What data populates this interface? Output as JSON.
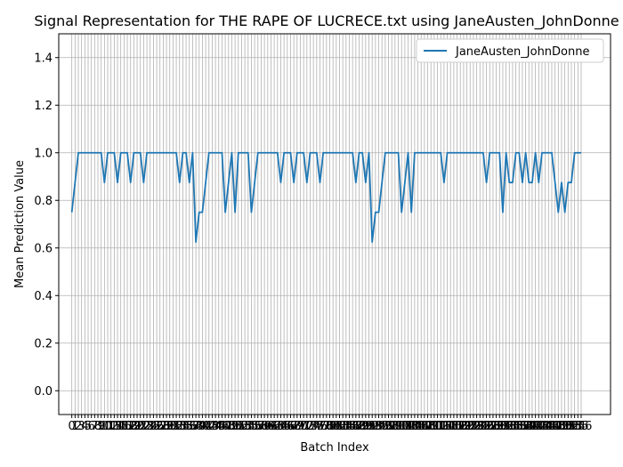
{
  "chart_data": {
    "type": "line",
    "title": "Signal Representation for THE RAPE OF LUCRECE.txt using JaneAusten_JohnDonne",
    "xlabel": "Batch Index",
    "ylabel": "Mean Prediction Value",
    "xlim": [
      -4,
      165
    ],
    "ylim": [
      -0.1,
      1.5
    ],
    "yticks": [
      0.0,
      0.2,
      0.4,
      0.6,
      0.8,
      1.0,
      1.2,
      1.4
    ],
    "grid": true,
    "legend_position": "top-right",
    "series": [
      {
        "name": "JaneAusten_JohnDonne",
        "color": "#1f77b4",
        "x_start": 0,
        "values": [
          0.75,
          0.875,
          1.0,
          1.0,
          1.0,
          1.0,
          1.0,
          1.0,
          1.0,
          1.0,
          0.875,
          1.0,
          1.0,
          1.0,
          0.875,
          1.0,
          1.0,
          1.0,
          0.875,
          1.0,
          1.0,
          1.0,
          0.875,
          1.0,
          1.0,
          1.0,
          1.0,
          1.0,
          1.0,
          1.0,
          1.0,
          1.0,
          1.0,
          0.875,
          1.0,
          1.0,
          0.875,
          1.0,
          0.625,
          0.75,
          0.75,
          0.875,
          1.0,
          1.0,
          1.0,
          1.0,
          1.0,
          0.75,
          0.875,
          1.0,
          0.75,
          1.0,
          1.0,
          1.0,
          1.0,
          0.75,
          0.875,
          1.0,
          1.0,
          1.0,
          1.0,
          1.0,
          1.0,
          1.0,
          0.875,
          1.0,
          1.0,
          1.0,
          0.875,
          1.0,
          1.0,
          1.0,
          0.875,
          1.0,
          1.0,
          1.0,
          0.875,
          1.0,
          1.0,
          1.0,
          1.0,
          1.0,
          1.0,
          1.0,
          1.0,
          1.0,
          1.0,
          0.875,
          1.0,
          1.0,
          0.875,
          1.0,
          0.625,
          0.75,
          0.75,
          0.875,
          1.0,
          1.0,
          1.0,
          1.0,
          1.0,
          0.75,
          0.875,
          1.0,
          0.75,
          1.0,
          1.0,
          1.0,
          1.0,
          1.0,
          1.0,
          1.0,
          1.0,
          1.0,
          0.875,
          1.0,
          1.0,
          1.0,
          1.0,
          1.0,
          1.0,
          1.0,
          1.0,
          1.0,
          1.0,
          1.0,
          1.0,
          0.875,
          1.0,
          1.0,
          1.0,
          1.0,
          0.75,
          1.0,
          0.875,
          0.875,
          1.0,
          1.0,
          0.875,
          1.0,
          0.875,
          0.875,
          1.0,
          0.875,
          1.0,
          1.0,
          1.0,
          1.0,
          0.875,
          0.75,
          0.875,
          0.75,
          0.875,
          0.875,
          1.0,
          1.0,
          1.0
        ]
      }
    ]
  }
}
